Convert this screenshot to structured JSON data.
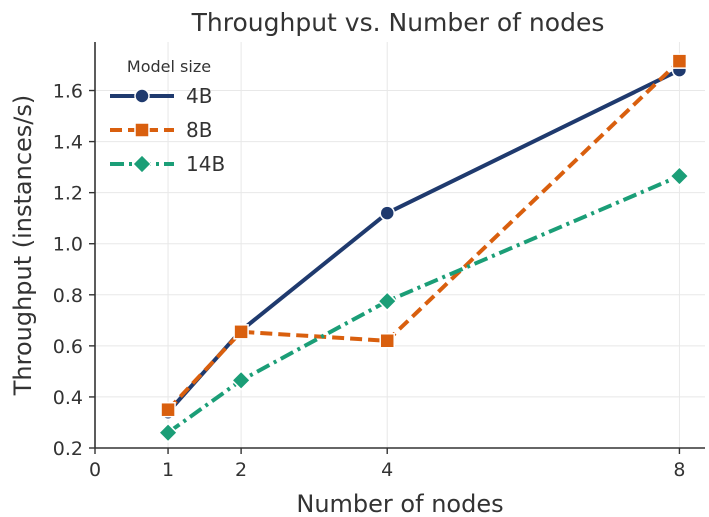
{
  "chart_data": {
    "type": "line",
    "title": "Throughput vs. Number of nodes",
    "xlabel": "Number of nodes",
    "ylabel": "Throughput (instances/s)",
    "xlim": [
      0,
      8.35
    ],
    "ylim": [
      0.2,
      1.79
    ],
    "xticks": [
      0,
      1,
      2,
      4,
      8
    ],
    "yticks": [
      0.2,
      0.4,
      0.6,
      0.8,
      1.0,
      1.2,
      1.4,
      1.6
    ],
    "ytick_labels": [
      "0.2",
      "0.4",
      "0.6",
      "0.8",
      "1.0",
      "1.2",
      "1.4",
      "1.6"
    ],
    "grid": true,
    "legend": {
      "title": "Model size",
      "placement": "top-left"
    },
    "x": [
      1,
      2,
      4,
      8
    ],
    "series": [
      {
        "name": "4B",
        "values": [
          0.34,
          0.66,
          1.12,
          1.68
        ],
        "color": "#1f3a6e",
        "dash": "solid",
        "marker": "circle"
      },
      {
        "name": "8B",
        "values": [
          0.35,
          0.655,
          0.62,
          1.715
        ],
        "color": "#d95f0e",
        "dash": "dashed",
        "marker": "square"
      },
      {
        "name": "14B",
        "values": [
          0.26,
          0.465,
          0.775,
          1.265
        ],
        "color": "#1b9e77",
        "dash": "dashdot",
        "marker": "diamond"
      }
    ]
  }
}
